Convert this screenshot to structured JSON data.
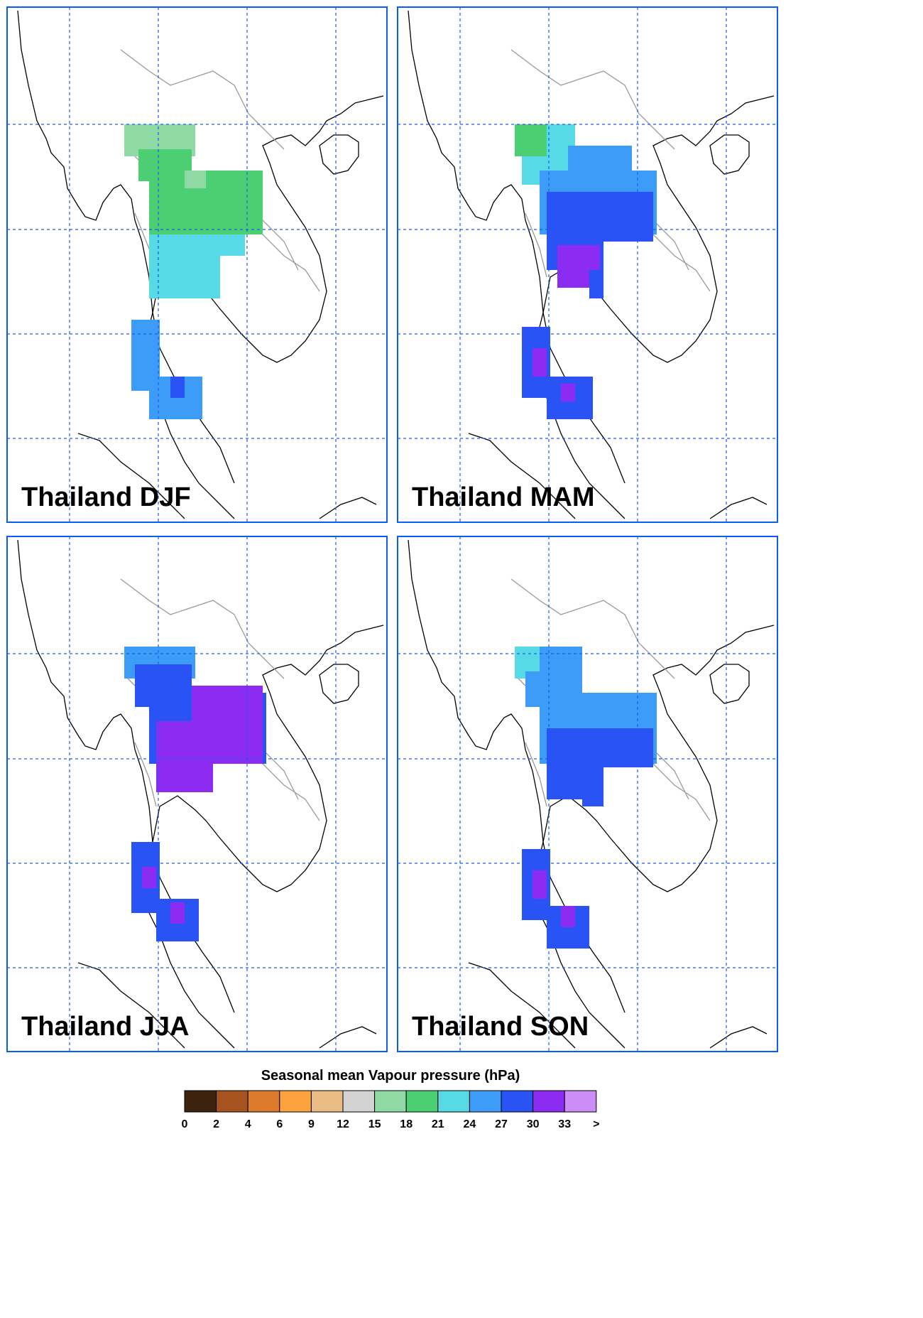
{
  "panels": [
    {
      "title": "Thailand DJF",
      "season": "DJF"
    },
    {
      "title": "Thailand MAM",
      "season": "MAM"
    },
    {
      "title": "Thailand JJA",
      "season": "JJA"
    },
    {
      "title": "Thailand SON",
      "season": "SON"
    }
  ],
  "colorbar": {
    "title": "Seasonal mean Vapour pressure (hPa)",
    "ticks": [
      "0",
      "2",
      "4",
      "6",
      "9",
      "12",
      "15",
      "18",
      "21",
      "24",
      "27",
      "30",
      "33",
      ">"
    ],
    "colors": [
      "#3d220d",
      "#a6531f",
      "#de7a2c",
      "#fca23f",
      "#e9bc86",
      "#d3d3d3",
      "#8ed9a4",
      "#4ccf72",
      "#57d9e6",
      "#3d9cf7",
      "#2a53f5",
      "#8c2cf2",
      "#cb8ef7"
    ]
  },
  "graticule_color": "#1a5cf0",
  "frame_color": "#0a5cf5"
}
